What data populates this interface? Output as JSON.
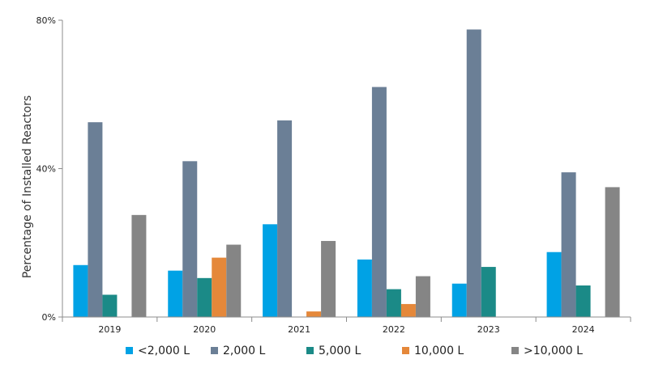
{
  "chart_data": {
    "type": "bar",
    "title": "",
    "xlabel": "",
    "ylabel": "Percentage of  Installed Reactors",
    "ylim": [
      0,
      80
    ],
    "yticks": [
      "0%",
      "40%",
      "80%"
    ],
    "ytick_values": [
      0,
      40,
      80
    ],
    "categories": [
      "2019",
      "2020",
      "2021",
      "2022",
      "2023",
      "2024"
    ],
    "grid": false,
    "legend_position": "bottom",
    "series": [
      {
        "name": "<2,000 L",
        "color": "#00A2E5",
        "values": [
          14,
          12.5,
          25,
          15.5,
          9,
          17.5
        ]
      },
      {
        "name": "2,000 L",
        "color": "#6B7F96",
        "values": [
          52.5,
          42,
          53,
          62,
          77.5,
          39
        ]
      },
      {
        "name": "5,000 L",
        "color": "#1B8A87",
        "values": [
          6,
          10.5,
          null,
          7.5,
          13.5,
          8.5
        ]
      },
      {
        "name": "10,000 L",
        "color": "#E5883A",
        "values": [
          null,
          16,
          1.5,
          3.5,
          null,
          null
        ]
      },
      {
        "name": ">10,000 L",
        "color": "#858585",
        "values": [
          27.5,
          19.5,
          20.5,
          11,
          null,
          35
        ]
      }
    ]
  }
}
